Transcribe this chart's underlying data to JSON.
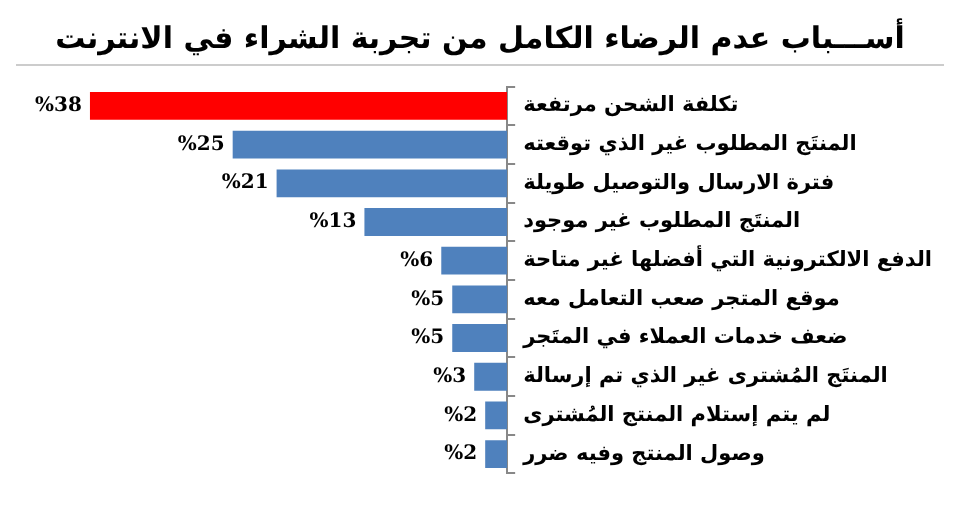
{
  "chart_data": {
    "type": "bar",
    "orientation": "horizontal",
    "tick_labels": "y",
    "title": "أســـباب عدم الرضاء الكامل من تجربة الشراء في الانترنت",
    "categories": [
      "تكلفة الشحن مرتفعة",
      "المنتَج المطلوب غير الذي توقعته",
      "فترة الارسال والتوصيل طويلة",
      "المنتَج المطلوب غير موجود",
      "الدفع الالكترونية التي أفضلها غير متاحة",
      "موقع المتجر صعب التعامل معه",
      "ضعف خدمات العملاء في المتَجر",
      "المنتَج المُشترى غير الذي تم إرسالة",
      "لم يتم إستلام المنتج المُشترى",
      "وصول المنتج وفيه ضرر"
    ],
    "values": [
      38,
      25,
      21,
      13,
      6,
      5,
      5,
      3,
      2,
      2
    ],
    "value_labels": [
      "%38",
      "%25",
      "%21",
      "%13",
      "%6",
      "%5",
      "%5",
      "%3",
      "%2",
      "%2"
    ],
    "colors": [
      "#ff0000",
      "#4f81bd",
      "#4f81bd",
      "#4f81bd",
      "#4f81bd",
      "#4f81bd",
      "#4f81bd",
      "#4f81bd",
      "#4f81bd",
      "#4f81bd"
    ],
    "grid": false,
    "legend": false
  }
}
